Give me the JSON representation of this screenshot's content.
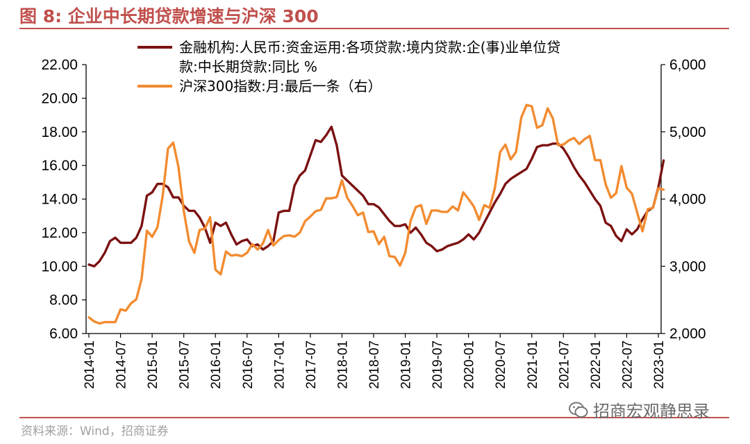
{
  "title": "图 8:  企业中长期贷款增速与沪深 300",
  "source": "资料来源：Wind，招商证券",
  "watermark": "招商宏观静思录",
  "colors": {
    "accent": "#c0504d",
    "series1": "#7b1111",
    "series2": "#f28b30"
  },
  "chart_data": {
    "type": "line",
    "legend_position": "top",
    "grid": false,
    "x_tick_labels": [
      "2014-01",
      "2014-07",
      "2015-01",
      "2015-07",
      "2016-01",
      "2016-07",
      "2017-01",
      "2017-07",
      "2018-01",
      "2018-07",
      "2019-01",
      "2019-07",
      "2020-01",
      "2020-07",
      "2021-01",
      "2021-07",
      "2022-01",
      "2022-07",
      "2023-01"
    ],
    "y_left": {
      "ticks": [
        "6.00",
        "8.00",
        "10.00",
        "12.00",
        "14.00",
        "16.00",
        "18.00",
        "20.00",
        "22.00"
      ],
      "range": [
        6,
        22
      ]
    },
    "y_right": {
      "ticks": [
        "2,000",
        "3,000",
        "4,000",
        "5,000",
        "6,000"
      ],
      "range": [
        2000,
        6000
      ]
    },
    "series": [
      {
        "name": "金融机构:人民币:资金运用:各项贷款:境内贷款:企(事)业单位贷款:中长期贷款:同比 %",
        "legend_lines": [
          "金融机构:人民币:资金运用:各项贷款:境内贷款:企(事)业单位贷",
          "款:中长期贷款:同比 %"
        ],
        "axis": "left",
        "color": "#7b1111",
        "x": [
          "2014-01",
          "2014-02",
          "2014-03",
          "2014-04",
          "2014-05",
          "2014-06",
          "2014-07",
          "2014-08",
          "2014-09",
          "2014-10",
          "2014-11",
          "2014-12",
          "2015-01",
          "2015-02",
          "2015-03",
          "2015-04",
          "2015-05",
          "2015-06",
          "2015-07",
          "2015-08",
          "2015-09",
          "2015-10",
          "2015-11",
          "2015-12",
          "2016-01",
          "2016-02",
          "2016-03",
          "2016-04",
          "2016-05",
          "2016-06",
          "2016-07",
          "2016-08",
          "2016-09",
          "2016-10",
          "2016-11",
          "2016-12",
          "2017-01",
          "2017-02",
          "2017-03",
          "2017-04",
          "2017-05",
          "2017-06",
          "2017-07",
          "2017-08",
          "2017-09",
          "2017-10",
          "2017-11",
          "2017-12",
          "2018-01",
          "2018-02",
          "2018-03",
          "2018-04",
          "2018-05",
          "2018-06",
          "2018-07",
          "2018-08",
          "2018-09",
          "2018-10",
          "2018-11",
          "2018-12",
          "2019-01",
          "2019-02",
          "2019-03",
          "2019-04",
          "2019-05",
          "2019-06",
          "2019-07",
          "2019-08",
          "2019-09",
          "2019-10",
          "2019-11",
          "2019-12",
          "2020-01",
          "2020-02",
          "2020-03",
          "2020-04",
          "2020-05",
          "2020-06",
          "2020-07",
          "2020-08",
          "2020-09",
          "2020-10",
          "2020-11",
          "2020-12",
          "2021-01",
          "2021-02",
          "2021-03",
          "2021-04",
          "2021-05",
          "2021-06",
          "2021-07",
          "2021-08",
          "2021-09",
          "2021-10",
          "2021-11",
          "2021-12",
          "2022-01",
          "2022-02",
          "2022-03",
          "2022-04",
          "2022-05",
          "2022-06",
          "2022-07",
          "2022-08",
          "2022-09",
          "2022-10",
          "2022-11",
          "2022-12",
          "2023-01",
          "2023-02"
        ],
        "values": [
          10.1,
          10.0,
          10.3,
          10.8,
          11.5,
          11.7,
          11.4,
          11.4,
          11.4,
          11.7,
          12.4,
          14.2,
          14.4,
          14.9,
          14.9,
          14.7,
          14.1,
          14.1,
          13.6,
          13.3,
          13.3,
          12.9,
          12.3,
          11.4,
          12.6,
          12.4,
          12.6,
          11.9,
          11.3,
          11.5,
          11.6,
          11.2,
          11.3,
          11.0,
          11.2,
          11.5,
          13.2,
          13.3,
          13.3,
          14.8,
          15.4,
          15.7,
          16.6,
          17.5,
          17.4,
          17.8,
          18.3,
          17.2,
          15.4,
          15.1,
          14.8,
          14.5,
          14.2,
          13.7,
          13.7,
          13.5,
          13.1,
          12.7,
          12.4,
          12.4,
          12.5,
          12.0,
          12.3,
          11.9,
          11.4,
          11.2,
          10.9,
          11.0,
          11.2,
          11.3,
          11.4,
          11.6,
          11.9,
          11.6,
          12.0,
          12.6,
          13.2,
          13.8,
          14.3,
          14.9,
          15.2,
          15.4,
          15.6,
          15.8,
          16.4,
          17.1,
          17.2,
          17.2,
          17.3,
          17.3,
          17.0,
          16.5,
          15.9,
          15.4,
          15.0,
          14.5,
          14.0,
          13.6,
          12.6,
          12.4,
          11.8,
          11.5,
          12.2,
          11.9,
          12.2,
          12.8,
          13.3,
          13.5,
          14.7,
          16.3
        ]
      },
      {
        "name": "沪深300指数:月:最后一条（右）",
        "axis": "right",
        "color": "#f28b30",
        "x": [
          "2014-01",
          "2014-02",
          "2014-03",
          "2014-04",
          "2014-05",
          "2014-06",
          "2014-07",
          "2014-08",
          "2014-09",
          "2014-10",
          "2014-11",
          "2014-12",
          "2015-01",
          "2015-02",
          "2015-03",
          "2015-04",
          "2015-05",
          "2015-06",
          "2015-07",
          "2015-08",
          "2015-09",
          "2015-10",
          "2015-11",
          "2015-12",
          "2016-01",
          "2016-02",
          "2016-03",
          "2016-04",
          "2016-05",
          "2016-06",
          "2016-07",
          "2016-08",
          "2016-09",
          "2016-10",
          "2016-11",
          "2016-12",
          "2017-01",
          "2017-02",
          "2017-03",
          "2017-04",
          "2017-05",
          "2017-06",
          "2017-07",
          "2017-08",
          "2017-09",
          "2017-10",
          "2017-11",
          "2017-12",
          "2018-01",
          "2018-02",
          "2018-03",
          "2018-04",
          "2018-05",
          "2018-06",
          "2018-07",
          "2018-08",
          "2018-09",
          "2018-10",
          "2018-11",
          "2018-12",
          "2019-01",
          "2019-02",
          "2019-03",
          "2019-04",
          "2019-05",
          "2019-06",
          "2019-07",
          "2019-08",
          "2019-09",
          "2019-10",
          "2019-11",
          "2019-12",
          "2020-01",
          "2020-02",
          "2020-03",
          "2020-04",
          "2020-05",
          "2020-06",
          "2020-07",
          "2020-08",
          "2020-09",
          "2020-10",
          "2020-11",
          "2020-12",
          "2021-01",
          "2021-02",
          "2021-03",
          "2021-04",
          "2021-05",
          "2021-06",
          "2021-07",
          "2021-08",
          "2021-09",
          "2021-10",
          "2021-11",
          "2021-12",
          "2022-01",
          "2022-02",
          "2022-03",
          "2022-04",
          "2022-05",
          "2022-06",
          "2022-07",
          "2022-08",
          "2022-09",
          "2022-10",
          "2022-11",
          "2022-12",
          "2023-01",
          "2023-02"
        ],
        "values": [
          2240,
          2180,
          2150,
          2170,
          2170,
          2170,
          2360,
          2340,
          2450,
          2510,
          2810,
          3530,
          3440,
          3580,
          4050,
          4750,
          4840,
          4470,
          3820,
          3370,
          3200,
          3540,
          3560,
          3730,
          2950,
          2880,
          3220,
          3160,
          3170,
          3150,
          3200,
          3330,
          3250,
          3340,
          3540,
          3310,
          3390,
          3450,
          3460,
          3440,
          3500,
          3670,
          3740,
          3820,
          3840,
          4010,
          4010,
          4030,
          4280,
          4020,
          3900,
          3760,
          3800,
          3510,
          3520,
          3330,
          3440,
          3150,
          3140,
          3010,
          3200,
          3670,
          3880,
          3910,
          3630,
          3830,
          3830,
          3810,
          3810,
          3890,
          3830,
          4100,
          4000,
          3890,
          3690,
          3910,
          3870,
          4160,
          4700,
          4810,
          4590,
          4700,
          5210,
          5400,
          5380,
          5060,
          5100,
          5350,
          5200,
          4800,
          4810,
          4870,
          4910,
          4820,
          4890,
          4940,
          4580,
          4580,
          4220,
          4020,
          4090,
          4490,
          4170,
          4080,
          3800,
          3520,
          3850,
          3870,
          4160,
          4140
        ]
      }
    ]
  }
}
